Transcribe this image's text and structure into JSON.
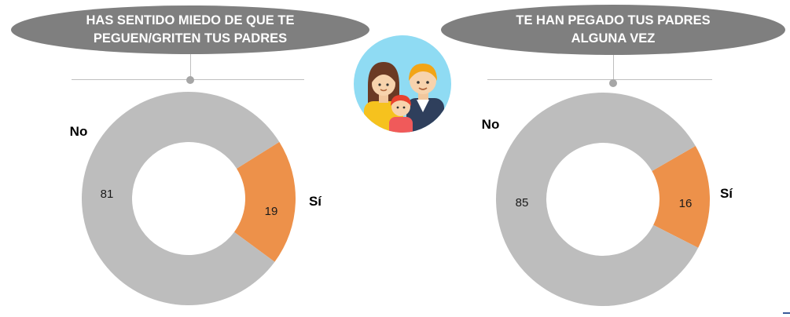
{
  "chart_data": [
    {
      "type": "pie",
      "title_lines": [
        "HAS SENTIDO MIEDO DE QUE TE",
        "PEGUEN/GRITEN TUS PADRES"
      ],
      "categories": [
        "Sí",
        "No"
      ],
      "values": [
        19,
        81
      ],
      "colors": [
        "#ed914a",
        "#bdbdbd"
      ]
    },
    {
      "type": "pie",
      "title_lines": [
        "TE HAN PEGADO TUS PADRES",
        "ALGUNA VEZ"
      ],
      "categories": [
        "Sí",
        "No"
      ],
      "values": [
        16,
        85
      ],
      "colors": [
        "#ed914a",
        "#bdbdbd"
      ]
    }
  ],
  "icon": "family-icon",
  "colors": {
    "title_pill": "#7f7f7f",
    "icon_circle": "#8fdbf3"
  }
}
